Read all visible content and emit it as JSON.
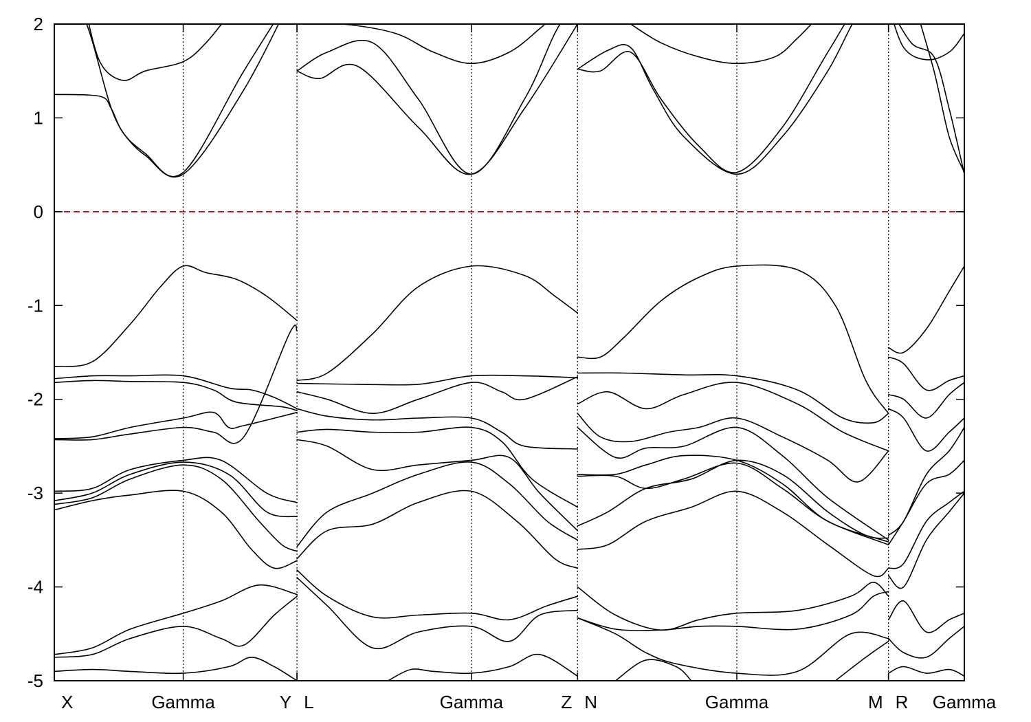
{
  "chart_data": {
    "type": "line",
    "title": "",
    "xlabel": "",
    "ylabel": "",
    "ylim": [
      -5,
      2
    ],
    "y_ticks": [
      2,
      1,
      0,
      -1,
      -2,
      -3,
      -4,
      -5
    ],
    "y_tick_labels": [
      "2",
      "1",
      "0",
      "-1",
      "-2",
      "-3",
      "-4",
      "-5"
    ],
    "fermi_level": 0,
    "colors": {
      "bands": "#000000",
      "fermi": "#d40000",
      "frame": "#000000",
      "vline": "#000000"
    },
    "grid": false,
    "legend": "none",
    "x_range": [
      0,
      12
    ],
    "symmetry_points": [
      {
        "label": "X",
        "x": 0
      },
      {
        "label": "Gamma",
        "x": 1.7
      },
      {
        "label": "Y",
        "x": 3.2
      },
      {
        "label": "L",
        "x": 3.2
      },
      {
        "label": "Gamma",
        "x": 5.5
      },
      {
        "label": "Z",
        "x": 6.9
      },
      {
        "label": "N",
        "x": 6.9
      },
      {
        "label": "Gamma",
        "x": 9.0
      },
      {
        "label": "M",
        "x": 11.0
      },
      {
        "label": "R",
        "x": 11.0
      },
      {
        "label": "Gamma",
        "x": 12.0
      }
    ],
    "panel_breaks": [
      3.2,
      6.9,
      11.0
    ],
    "gamma_lines": [
      1.7,
      5.5,
      9.0
    ],
    "series": [
      {
        "x": [
          0,
          0.6,
          0.75,
          0.9,
          1.2,
          1.7,
          2.5,
          3.2
        ],
        "y": [
          1.25,
          1.23,
          1.1,
          0.85,
          0.6,
          0.4,
          1.3,
          2.4
        ]
      },
      {
        "x": [
          0,
          0.4,
          0.8,
          1.2,
          1.7,
          2.5,
          3.2
        ],
        "y": [
          2.4,
          2.05,
          1.0,
          0.62,
          0.42,
          1.5,
          2.4
        ]
      },
      {
        "x": [
          0.4,
          0.6,
          0.9,
          1.2,
          1.7,
          2.0,
          2.3
        ],
        "y": [
          2.2,
          1.6,
          1.4,
          1.5,
          1.6,
          1.8,
          2.1
        ]
      },
      {
        "x": [
          0,
          0.5,
          1.0,
          1.4,
          1.7,
          2.0,
          2.4,
          2.8,
          3.2
        ],
        "y": [
          -1.65,
          -1.6,
          -1.2,
          -0.8,
          -0.58,
          -0.65,
          -0.72,
          -0.9,
          -1.16
        ]
      },
      {
        "x": [
          0,
          0.5,
          1.0,
          1.7,
          2.3,
          2.6,
          2.9,
          3.2
        ],
        "y": [
          -1.78,
          -1.75,
          -1.75,
          -1.75,
          -1.88,
          -1.9,
          -1.98,
          -2.1
        ]
      },
      {
        "x": [
          0,
          0.5,
          1.0,
          1.7,
          2.1,
          2.4,
          3.0,
          3.2
        ],
        "y": [
          -1.82,
          -1.8,
          -1.81,
          -1.82,
          -1.9,
          -2.03,
          -2.08,
          -2.12
        ]
      },
      {
        "x": [
          0,
          0.5,
          1.0,
          1.7,
          2.1,
          2.3,
          2.5,
          3.2
        ],
        "y": [
          -2.42,
          -2.4,
          -2.3,
          -2.2,
          -2.14,
          -2.3,
          -2.28,
          -2.14
        ]
      },
      {
        "x": [
          0,
          0.5,
          1.0,
          1.7,
          2.1,
          2.5,
          3.1,
          3.2
        ],
        "y": [
          -2.43,
          -2.43,
          -2.37,
          -2.3,
          -2.35,
          -2.4,
          -1.3,
          -1.27
        ]
      },
      {
        "x": [
          0,
          0.5,
          1.0,
          1.7,
          2.2,
          2.8,
          3.2
        ],
        "y": [
          -2.98,
          -2.95,
          -2.75,
          -2.65,
          -2.65,
          -3.0,
          -3.1
        ]
      },
      {
        "x": [
          0,
          0.5,
          1.0,
          1.7,
          2.3,
          2.8,
          3.2
        ],
        "y": [
          -3.08,
          -3.0,
          -2.8,
          -2.67,
          -2.8,
          -3.2,
          -3.25
        ]
      },
      {
        "x": [
          0,
          0.5,
          1.0,
          1.7,
          2.2,
          2.7,
          3.0,
          3.2
        ],
        "y": [
          -3.12,
          -3.05,
          -2.85,
          -2.7,
          -2.85,
          -3.3,
          -3.55,
          -3.62
        ]
      },
      {
        "x": [
          0,
          0.5,
          1.0,
          1.7,
          2.2,
          2.6,
          2.9,
          3.2
        ],
        "y": [
          -3.18,
          -3.08,
          -3.02,
          -2.98,
          -3.2,
          -3.6,
          -3.8,
          -3.72
        ]
      },
      {
        "x": [
          0,
          0.5,
          1.0,
          1.7,
          2.2,
          2.7,
          3.2
        ],
        "y": [
          -4.72,
          -4.65,
          -4.45,
          -4.28,
          -4.15,
          -3.98,
          -4.08
        ]
      },
      {
        "x": [
          0,
          0.5,
          1.0,
          1.7,
          2.2,
          2.5,
          2.9,
          3.2
        ],
        "y": [
          -4.75,
          -4.72,
          -4.55,
          -4.42,
          -4.55,
          -4.62,
          -4.3,
          -4.1
        ]
      },
      {
        "x": [
          0,
          0.5,
          1.0,
          1.7,
          2.3,
          2.6,
          2.9,
          3.2
        ],
        "y": [
          -4.9,
          -4.88,
          -4.9,
          -4.92,
          -4.85,
          -4.75,
          -4.85,
          -5.0
        ]
      },
      {
        "x": [
          3.2,
          3.6,
          4.2,
          4.8,
          5.5,
          6.2,
          6.6,
          6.9
        ],
        "y": [
          1.5,
          1.7,
          1.8,
          1.2,
          0.4,
          1.2,
          1.9,
          2.3
        ]
      },
      {
        "x": [
          3.2,
          3.5,
          4.0,
          4.8,
          5.5,
          6.2,
          6.9
        ],
        "y": [
          1.5,
          1.42,
          1.55,
          0.9,
          0.4,
          1.1,
          2.0
        ]
      },
      {
        "x": [
          3.2,
          3.8,
          4.5,
          5.0,
          5.5,
          6.0,
          6.4,
          6.6
        ],
        "y": [
          2.0,
          2.0,
          1.9,
          1.7,
          1.58,
          1.7,
          1.95,
          2.1
        ]
      },
      {
        "x": [
          3.2,
          3.6,
          4.2,
          4.8,
          5.5,
          6.2,
          6.6,
          6.9
        ],
        "y": [
          -1.8,
          -1.72,
          -1.3,
          -0.8,
          -0.58,
          -0.68,
          -0.9,
          -1.08
        ]
      },
      {
        "x": [
          3.2,
          4.0,
          4.8,
          5.5,
          6.2,
          6.9
        ],
        "y": [
          -1.83,
          -1.84,
          -1.84,
          -1.75,
          -1.75,
          -1.77
        ]
      },
      {
        "x": [
          3.2,
          3.6,
          4.2,
          4.8,
          5.5,
          5.9,
          6.2,
          6.9
        ],
        "y": [
          -1.92,
          -2.0,
          -2.15,
          -2.0,
          -1.82,
          -1.92,
          -2.0,
          -1.76
        ]
      },
      {
        "x": [
          3.2,
          3.6,
          4.2,
          4.8,
          5.5,
          5.9,
          6.2,
          6.9
        ],
        "y": [
          -2.1,
          -2.18,
          -2.22,
          -2.2,
          -2.2,
          -2.35,
          -2.5,
          -2.53
        ]
      },
      {
        "x": [
          3.2,
          3.6,
          4.2,
          4.8,
          5.5,
          5.9,
          6.3,
          6.9
        ],
        "y": [
          -2.35,
          -2.32,
          -2.35,
          -2.35,
          -2.3,
          -2.45,
          -2.85,
          -3.15
        ]
      },
      {
        "x": [
          3.2,
          3.6,
          4.2,
          4.8,
          5.5,
          6.0,
          6.4,
          6.9
        ],
        "y": [
          -2.43,
          -2.5,
          -2.75,
          -2.7,
          -2.65,
          -2.62,
          -3.0,
          -3.4
        ]
      },
      {
        "x": [
          3.2,
          3.6,
          4.2,
          4.8,
          5.5,
          6.0,
          6.5,
          6.9
        ],
        "y": [
          -3.57,
          -3.2,
          -3.0,
          -2.8,
          -2.67,
          -2.9,
          -3.3,
          -3.5
        ]
      },
      {
        "x": [
          3.2,
          3.6,
          4.2,
          4.8,
          5.5,
          6.1,
          6.6,
          6.9
        ],
        "y": [
          -3.7,
          -3.4,
          -3.33,
          -3.1,
          -2.98,
          -3.3,
          -3.7,
          -3.8
        ]
      },
      {
        "x": [
          3.2,
          3.6,
          4.2,
          4.8,
          5.5,
          6.0,
          6.5,
          6.9
        ],
        "y": [
          -3.82,
          -4.1,
          -4.32,
          -4.3,
          -4.28,
          -4.35,
          -4.2,
          -4.1
        ]
      },
      {
        "x": [
          3.2,
          3.6,
          4.2,
          4.8,
          5.5,
          6.0,
          6.4,
          6.9
        ],
        "y": [
          -3.9,
          -4.2,
          -4.65,
          -4.48,
          -4.42,
          -4.58,
          -4.3,
          -4.25
        ]
      },
      {
        "x": [
          4.4,
          4.7,
          5.0,
          5.5,
          6.0,
          6.4,
          6.9
        ],
        "y": [
          -5.0,
          -4.88,
          -4.9,
          -4.92,
          -4.85,
          -4.72,
          -4.95
        ]
      },
      {
        "x": [
          6.9,
          7.3,
          7.6,
          7.9,
          8.3,
          9.0,
          9.6,
          10.2,
          10.6,
          11.0
        ],
        "y": [
          1.52,
          1.72,
          1.75,
          1.3,
          0.8,
          0.4,
          0.8,
          1.5,
          2.1,
          2.4
        ]
      },
      {
        "x": [
          6.9,
          7.2,
          7.6,
          8.0,
          8.5,
          9.0,
          9.6,
          10.2,
          10.6,
          11.0
        ],
        "y": [
          1.52,
          1.5,
          1.7,
          1.2,
          0.7,
          0.42,
          0.9,
          1.7,
          2.2,
          2.4
        ]
      },
      {
        "x": [
          7.6,
          8.0,
          8.5,
          9.0,
          9.5,
          9.8,
          10.1
        ],
        "y": [
          2.0,
          1.8,
          1.65,
          1.58,
          1.65,
          1.85,
          2.1
        ]
      },
      {
        "x": [
          6.9,
          7.2,
          7.5,
          8.0,
          8.5,
          9.0,
          9.8,
          10.3,
          10.7,
          11.0
        ],
        "y": [
          -1.55,
          -1.55,
          -1.35,
          -0.95,
          -0.7,
          -0.58,
          -0.62,
          -1.0,
          -1.8,
          -2.15
        ]
      },
      {
        "x": [
          6.9,
          7.5,
          8.3,
          9.0,
          9.8,
          10.4,
          10.8,
          11.0
        ],
        "y": [
          -1.72,
          -1.72,
          -1.74,
          -1.75,
          -1.9,
          -2.2,
          -2.25,
          -2.15
        ]
      },
      {
        "x": [
          6.9,
          7.3,
          7.8,
          8.3,
          9.0,
          9.8,
          10.4,
          11.0
        ],
        "y": [
          -2.05,
          -1.92,
          -2.1,
          -1.95,
          -1.82,
          -2.05,
          -2.35,
          -2.55
        ]
      },
      {
        "x": [
          6.9,
          7.2,
          7.6,
          8.1,
          8.5,
          9.0,
          9.6,
          10.2,
          10.6,
          11.0
        ],
        "y": [
          -2.15,
          -2.4,
          -2.45,
          -2.35,
          -2.3,
          -2.2,
          -2.4,
          -2.65,
          -2.88,
          -2.55
        ]
      },
      {
        "x": [
          6.9,
          7.4,
          7.8,
          8.3,
          9.0,
          9.6,
          10.2,
          11.0
        ],
        "y": [
          -2.3,
          -2.62,
          -2.52,
          -2.5,
          -2.3,
          -2.6,
          -3.05,
          -3.5
        ]
      },
      {
        "x": [
          6.9,
          7.4,
          7.8,
          8.3,
          9.0,
          9.6,
          10.2,
          11.0
        ],
        "y": [
          -2.8,
          -2.8,
          -2.7,
          -2.6,
          -2.65,
          -2.9,
          -3.3,
          -3.52
        ]
      },
      {
        "x": [
          6.9,
          7.4,
          7.8,
          8.3,
          9.0,
          9.6,
          10.2,
          11.0
        ],
        "y": [
          -2.82,
          -2.82,
          -2.95,
          -2.85,
          -2.68,
          -2.95,
          -3.3,
          -3.55
        ]
      },
      {
        "x": [
          6.9,
          7.3,
          7.8,
          8.4,
          9.0,
          9.6,
          10.2,
          10.8,
          11.0
        ],
        "y": [
          -3.6,
          -3.55,
          -3.3,
          -3.15,
          -2.98,
          -3.2,
          -3.55,
          -3.88,
          -3.8
        ]
      },
      {
        "x": [
          6.9,
          7.3,
          7.8,
          8.4,
          9.0,
          9.6,
          10.2,
          10.7,
          11.0
        ],
        "y": [
          -3.35,
          -3.2,
          -2.95,
          -2.85,
          -2.65,
          -2.8,
          -3.2,
          -3.45,
          -3.48
        ]
      },
      {
        "x": [
          6.9,
          7.4,
          8.0,
          8.5,
          9.0,
          9.8,
          10.5,
          10.8,
          11.0
        ],
        "y": [
          -4.0,
          -4.3,
          -4.46,
          -4.35,
          -4.28,
          -4.25,
          -4.1,
          -3.95,
          -4.1
        ]
      },
      {
        "x": [
          6.9,
          7.4,
          8.0,
          8.5,
          9.0,
          9.8,
          10.5,
          10.8,
          11.0
        ],
        "y": [
          -4.33,
          -4.45,
          -4.46,
          -4.42,
          -4.42,
          -4.45,
          -4.3,
          -4.1,
          -4.05
        ]
      },
      {
        "x": [
          6.9,
          7.4,
          7.8,
          8.2,
          9.0,
          9.8,
          10.5,
          11.0
        ],
        "y": [
          -4.33,
          -4.5,
          -4.7,
          -4.82,
          -4.92,
          -4.9,
          -4.5,
          -4.55
        ]
      },
      {
        "x": [
          7.4,
          7.8,
          8.2,
          8.4
        ],
        "y": [
          -5.0,
          -4.78,
          -4.85,
          -5.0
        ]
      },
      {
        "x": [
          10.3,
          10.7,
          11.0
        ],
        "y": [
          -5.0,
          -4.75,
          -4.58
        ]
      },
      {
        "x": [
          11.0,
          11.2,
          11.5,
          11.8,
          12.0
        ],
        "y": [
          2.2,
          1.75,
          1.62,
          1.7,
          1.9
        ]
      },
      {
        "x": [
          11.0,
          11.3,
          11.6,
          11.8,
          12.0
        ],
        "y": [
          2.2,
          1.8,
          1.65,
          1.1,
          0.4
        ]
      },
      {
        "x": [
          11.35,
          11.6,
          11.8,
          12.0
        ],
        "y": [
          2.2,
          1.5,
          0.8,
          0.42
        ]
      },
      {
        "x": [
          11.0,
          11.2,
          11.5,
          11.8,
          12.0
        ],
        "y": [
          -1.45,
          -1.5,
          -1.25,
          -0.85,
          -0.58
        ]
      },
      {
        "x": [
          11.0,
          11.2,
          11.5,
          11.8,
          12.0
        ],
        "y": [
          -1.55,
          -1.62,
          -1.9,
          -1.8,
          -1.75
        ]
      },
      {
        "x": [
          11.0,
          11.2,
          11.5,
          11.8,
          12.0
        ],
        "y": [
          -1.95,
          -2.0,
          -2.2,
          -1.95,
          -1.82
        ]
      },
      {
        "x": [
          11.0,
          11.2,
          11.5,
          11.8,
          12.0
        ],
        "y": [
          -2.1,
          -2.2,
          -2.55,
          -2.35,
          -2.2
        ]
      },
      {
        "x": [
          11.0,
          11.2,
          11.5,
          11.8,
          12.0
        ],
        "y": [
          -3.45,
          -3.3,
          -2.8,
          -2.55,
          -2.3
        ]
      },
      {
        "x": [
          11.0,
          11.2,
          11.5,
          11.8,
          12.0
        ],
        "y": [
          -3.55,
          -3.3,
          -2.9,
          -2.8,
          -2.65
        ]
      },
      {
        "x": [
          11.0,
          11.2,
          11.5,
          11.8,
          12.0
        ],
        "y": [
          -3.8,
          -3.75,
          -3.3,
          -3.1,
          -2.98
        ]
      },
      {
        "x": [
          11.0,
          11.2,
          11.5,
          11.8,
          12.0
        ],
        "y": [
          -3.88,
          -4.0,
          -3.5,
          -3.2,
          -3.0
        ]
      },
      {
        "x": [
          11.0,
          11.2,
          11.5,
          11.8,
          12.0
        ],
        "y": [
          -4.35,
          -4.15,
          -4.48,
          -4.35,
          -4.28
        ]
      },
      {
        "x": [
          11.0,
          11.2,
          11.5,
          11.8,
          12.0
        ],
        "y": [
          -4.55,
          -4.7,
          -4.75,
          -4.55,
          -4.42
        ]
      },
      {
        "x": [
          11.0,
          11.2,
          11.5,
          11.8,
          12.0
        ],
        "y": [
          -4.92,
          -4.85,
          -4.92,
          -4.88,
          -4.95
        ]
      }
    ]
  }
}
